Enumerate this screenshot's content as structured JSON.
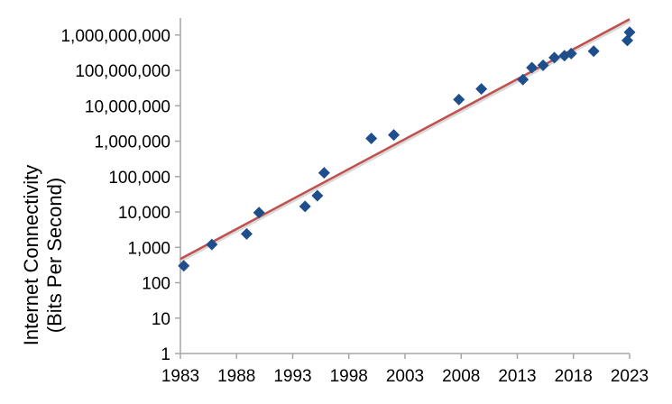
{
  "chart_data": {
    "type": "scatter",
    "title": "",
    "xlabel": "",
    "ylabel": "Internet Connectivity",
    "ylabel_line2": "(Bits Per Second)",
    "x_scale": "linear",
    "y_scale": "log",
    "xlim": [
      1983,
      2023
    ],
    "ylim": [
      1,
      3000000000
    ],
    "grid": false,
    "legend": "none",
    "x_ticks": [
      1983,
      1988,
      1993,
      1998,
      2003,
      2008,
      2013,
      2018,
      2023
    ],
    "x_tick_labels": [
      "1983",
      "1988",
      "1993",
      "1998",
      "2003",
      "2008",
      "2013",
      "2018",
      "2023"
    ],
    "y_ticks": [
      1,
      10,
      100,
      1000,
      10000,
      100000,
      1000000,
      10000000,
      100000000,
      1000000000
    ],
    "y_tick_labels": [
      "1",
      "10",
      "100",
      "1,000",
      "10,000",
      "100,000",
      "1,000,000",
      "10,000,000",
      "100,000,000",
      "1,000,000,000"
    ],
    "points": [
      {
        "x": 1983.3,
        "y": 300
      },
      {
        "x": 1985.8,
        "y": 1200
      },
      {
        "x": 1988.9,
        "y": 2400
      },
      {
        "x": 1990.0,
        "y": 9600
      },
      {
        "x": 1994.1,
        "y": 14400
      },
      {
        "x": 1995.2,
        "y": 28800
      },
      {
        "x": 1995.8,
        "y": 128000
      },
      {
        "x": 2000.0,
        "y": 1200000
      },
      {
        "x": 2002.0,
        "y": 1500000
      },
      {
        "x": 2007.8,
        "y": 15000000
      },
      {
        "x": 2009.8,
        "y": 30000000
      },
      {
        "x": 2013.5,
        "y": 55000000
      },
      {
        "x": 2014.3,
        "y": 120000000
      },
      {
        "x": 2015.3,
        "y": 140000000
      },
      {
        "x": 2016.3,
        "y": 230000000
      },
      {
        "x": 2017.2,
        "y": 260000000
      },
      {
        "x": 2017.8,
        "y": 300000000
      },
      {
        "x": 2019.8,
        "y": 350000000
      },
      {
        "x": 2022.8,
        "y": 700000000
      },
      {
        "x": 2023.0,
        "y": 1200000000
      }
    ],
    "trendline": {
      "x": [
        1983,
        2023
      ],
      "y": [
        470,
        2800000000
      ]
    },
    "colors": {
      "points": "#1F4E8C",
      "trendline": "#C0504D",
      "axis": "#A6A6A6",
      "text": "#000000"
    }
  }
}
